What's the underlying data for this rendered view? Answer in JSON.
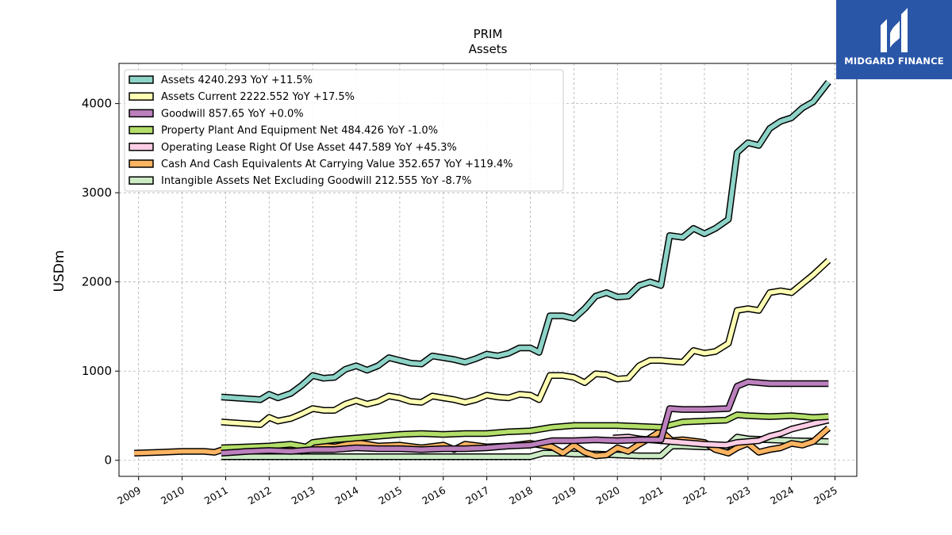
{
  "chart_data": {
    "type": "line",
    "title": "PRIM",
    "subtitle": "Assets",
    "ylabel": "USDm",
    "xlabel": "",
    "xlim": [
      2008.55,
      2025.5
    ],
    "ylim": [
      -180,
      4450
    ],
    "yticks": [
      0,
      1000,
      2000,
      3000,
      4000
    ],
    "xticks": [
      "2009",
      "2010",
      "2011",
      "2012",
      "2013",
      "2014",
      "2015",
      "2016",
      "2017",
      "2018",
      "2019",
      "2020",
      "2021",
      "2022",
      "2023",
      "2024",
      "2025"
    ],
    "grid": true,
    "legend_position": "top-left",
    "series": [
      {
        "name": "Assets",
        "legend": "Assets  4240.293 YoY +11.5%",
        "color": "#8dd3c7",
        "x": [
          2010.9,
          2011.2,
          2011.5,
          2011.8,
          2012.0,
          2012.2,
          2012.5,
          2012.75,
          2013.0,
          2013.25,
          2013.5,
          2013.75,
          2014.0,
          2014.25,
          2014.5,
          2014.75,
          2015.0,
          2015.25,
          2015.5,
          2015.75,
          2016.0,
          2016.25,
          2016.5,
          2016.75,
          2017.0,
          2017.25,
          2017.5,
          2017.75,
          2018.0,
          2018.2,
          2018.45,
          2018.75,
          2019.0,
          2019.25,
          2019.5,
          2019.75,
          2020.0,
          2020.25,
          2020.5,
          2020.75,
          2021.0,
          2021.2,
          2021.5,
          2021.75,
          2022.0,
          2022.25,
          2022.55,
          2022.75,
          2023.0,
          2023.25,
          2023.5,
          2023.75,
          2024.0,
          2024.25,
          2024.5,
          2024.85
        ],
        "y": [
          710,
          700,
          690,
          680,
          740,
          700,
          750,
          840,
          950,
          920,
          930,
          1020,
          1060,
          1010,
          1060,
          1150,
          1120,
          1090,
          1080,
          1170,
          1150,
          1130,
          1100,
          1140,
          1190,
          1170,
          1200,
          1260,
          1260,
          1210,
          1620,
          1620,
          1590,
          1700,
          1840,
          1880,
          1830,
          1840,
          1960,
          2000,
          1960,
          2520,
          2500,
          2600,
          2540,
          2600,
          2700,
          3450,
          3560,
          3530,
          3720,
          3800,
          3840,
          3950,
          4020,
          4240
        ]
      },
      {
        "name": "Assets Current",
        "legend": "Assets Current  2222.552 YoY +17.5%",
        "color": "#ffffb3",
        "x": [
          2010.9,
          2011.2,
          2011.5,
          2011.8,
          2012.0,
          2012.2,
          2012.5,
          2012.75,
          2013.0,
          2013.25,
          2013.5,
          2013.75,
          2014.0,
          2014.25,
          2014.5,
          2014.75,
          2015.0,
          2015.25,
          2015.5,
          2015.75,
          2016.0,
          2016.25,
          2016.5,
          2016.75,
          2017.0,
          2017.25,
          2017.5,
          2017.75,
          2018.0,
          2018.2,
          2018.45,
          2018.75,
          2019.0,
          2019.25,
          2019.5,
          2019.75,
          2020.0,
          2020.25,
          2020.5,
          2020.75,
          2021.0,
          2021.2,
          2021.5,
          2021.75,
          2022.0,
          2022.25,
          2022.55,
          2022.75,
          2023.0,
          2023.25,
          2023.5,
          2023.75,
          2024.0,
          2024.25,
          2024.5,
          2024.85
        ],
        "y": [
          430,
          420,
          410,
          400,
          480,
          440,
          470,
          520,
          580,
          560,
          560,
          630,
          670,
          630,
          660,
          720,
          700,
          660,
          650,
          720,
          700,
          680,
          650,
          680,
          730,
          710,
          700,
          740,
          730,
          680,
          950,
          950,
          930,
          870,
          970,
          960,
          910,
          920,
          1060,
          1120,
          1120,
          1110,
          1100,
          1230,
          1200,
          1220,
          1310,
          1680,
          1700,
          1680,
          1880,
          1900,
          1880,
          1980,
          2080,
          2240
        ]
      },
      {
        "name": "Goodwill",
        "legend": "Goodwill  857.65 YoY +0.0%",
        "color": "#bc80bd",
        "x": [
          2010.9,
          2011.5,
          2012.0,
          2012.5,
          2013.0,
          2013.5,
          2014.0,
          2014.5,
          2015.0,
          2015.5,
          2016.0,
          2016.5,
          2017.0,
          2017.5,
          2018.0,
          2018.5,
          2019.0,
          2019.5,
          2020.0,
          2020.5,
          2021.0,
          2021.2,
          2021.5,
          2022.0,
          2022.55,
          2022.75,
          2023.0,
          2023.5,
          2024.0,
          2024.85
        ],
        "y": [
          80,
          100,
          110,
          100,
          120,
          120,
          140,
          130,
          130,
          120,
          130,
          130,
          140,
          160,
          170,
          220,
          220,
          230,
          220,
          230,
          230,
          580,
          570,
          570,
          580,
          830,
          880,
          860,
          860,
          860
        ]
      },
      {
        "name": "Property Plant And Equipment Net",
        "legend": "Property Plant And Equipment Net  484.426 YoY -1.0%",
        "color": "#b3de69",
        "x": [
          2010.9,
          2011.5,
          2012.0,
          2012.5,
          2012.85,
          2013.0,
          2013.5,
          2014.0,
          2014.5,
          2015.0,
          2015.5,
          2016.0,
          2016.5,
          2017.0,
          2017.5,
          2018.0,
          2018.5,
          2019.0,
          2019.5,
          2020.0,
          2020.5,
          2021.0,
          2021.5,
          2022.0,
          2022.5,
          2022.75,
          2023.0,
          2023.5,
          2024.0,
          2024.5,
          2024.85
        ],
        "y": [
          140,
          150,
          160,
          180,
          150,
          200,
          230,
          250,
          270,
          290,
          300,
          290,
          300,
          300,
          320,
          330,
          370,
          390,
          390,
          390,
          380,
          370,
          430,
          440,
          450,
          510,
          500,
          490,
          500,
          480,
          490
        ]
      },
      {
        "name": "Operating Lease Right Of Use Asset",
        "legend": "Operating Lease Right Of Use Asset  447.589 YoY +45.3%",
        "color": "#fccde5",
        "x": [
          2019.9,
          2020.25,
          2020.5,
          2020.75,
          2021.0,
          2021.5,
          2022.0,
          2022.5,
          2022.75,
          2023.0,
          2023.25,
          2023.5,
          2023.75,
          2024.0,
          2024.5,
          2024.85
        ],
        "y": [
          250,
          260,
          240,
          230,
          220,
          200,
          180,
          170,
          200,
          210,
          220,
          270,
          300,
          350,
          410,
          450
        ]
      },
      {
        "name": "Cash And Cash Equivalents At Carrying Value",
        "legend": "Cash And Cash Equivalents At Carrying Value  352.657 YoY +119.4%",
        "color": "#fdb462",
        "x": [
          2008.9,
          2009.5,
          2010.0,
          2010.5,
          2010.75,
          2011.0,
          2011.5,
          2011.75,
          2012.0,
          2012.5,
          2012.75,
          2013.0,
          2013.5,
          2014.0,
          2014.5,
          2015.0,
          2015.5,
          2016.0,
          2016.25,
          2016.5,
          2017.0,
          2017.5,
          2018.0,
          2018.5,
          2018.75,
          2019.0,
          2019.25,
          2019.5,
          2019.75,
          2020.0,
          2020.25,
          2020.5,
          2020.75,
          2021.0,
          2021.25,
          2021.5,
          2022.0,
          2022.25,
          2022.55,
          2022.75,
          2023.0,
          2023.25,
          2023.5,
          2023.75,
          2024.0,
          2024.25,
          2024.5,
          2024.85
        ],
        "y": [
          80,
          90,
          100,
          100,
          90,
          130,
          140,
          120,
          140,
          130,
          100,
          170,
          150,
          200,
          160,
          170,
          140,
          170,
          120,
          180,
          150,
          160,
          190,
          150,
          80,
          170,
          90,
          50,
          60,
          140,
          100,
          180,
          250,
          330,
          220,
          230,
          200,
          120,
          80,
          140,
          190,
          90,
          120,
          140,
          190,
          170,
          210,
          360
        ]
      },
      {
        "name": "Intangible Assets Net Excluding Goodwill",
        "legend": "Intangible Assets Net Excluding Goodwill  212.555 YoY -8.7%",
        "color": "#ccebc5",
        "x": [
          2010.9,
          2011.5,
          2012.0,
          2012.5,
          2013.0,
          2013.5,
          2014.0,
          2014.5,
          2015.0,
          2015.5,
          2016.0,
          2016.5,
          2017.0,
          2017.5,
          2018.0,
          2018.3,
          2018.75,
          2019.0,
          2019.5,
          2020.0,
          2020.5,
          2021.0,
          2021.25,
          2021.5,
          2022.0,
          2022.5,
          2022.75,
          2023.0,
          2023.5,
          2024.0,
          2024.85
        ],
        "y": [
          40,
          40,
          40,
          40,
          40,
          40,
          40,
          40,
          40,
          40,
          40,
          40,
          40,
          40,
          40,
          80,
          80,
          70,
          70,
          60,
          50,
          50,
          160,
          160,
          150,
          150,
          260,
          240,
          230,
          220,
          210
        ]
      }
    ]
  }
}
